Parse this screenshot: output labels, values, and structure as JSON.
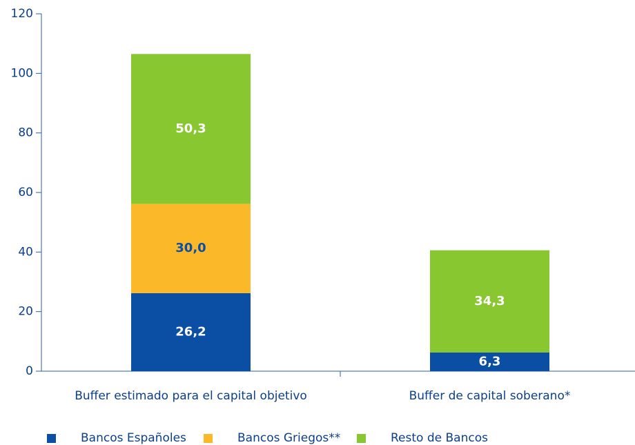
{
  "chart_data": {
    "type": "stacked_bar",
    "categories": [
      "Buffer estimado para el capital objetivo",
      "Buffer de capital soberano*"
    ],
    "series": [
      {
        "name": "Bancos Españoles",
        "color": "#0a4fa3",
        "values": [
          26.2,
          6.3
        ],
        "value_labels": [
          "26,2",
          "6,3"
        ],
        "label_color": "#ffffff"
      },
      {
        "name": "Bancos Griegos**",
        "color": "#fbb829",
        "values": [
          30.0,
          null
        ],
        "value_labels": [
          "30,0",
          null
        ],
        "label_color": "#0a4fa3"
      },
      {
        "name": "Resto de Bancos",
        "color": "#89c730",
        "values": [
          50.3,
          34.3
        ],
        "value_labels": [
          "50,3",
          "34,3"
        ],
        "label_color": "#ffffff"
      }
    ],
    "ylim": [
      0,
      120
    ],
    "yticks": [
      0,
      20,
      40,
      60,
      80,
      100,
      120
    ]
  }
}
